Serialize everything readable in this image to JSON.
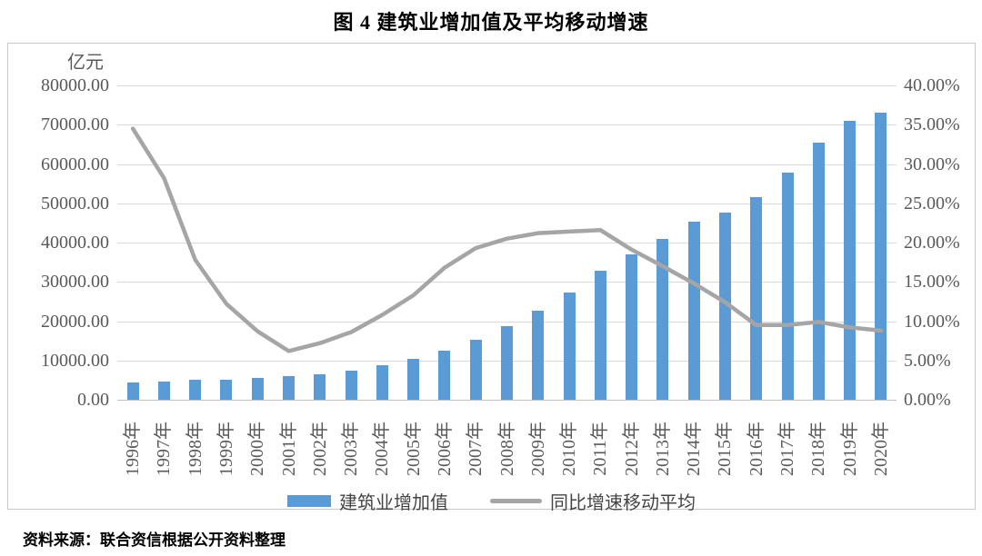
{
  "title": "图 4  建筑业增加值及平均移动增速",
  "source_note": "资料来源：联合资信根据公开资料整理",
  "left_axis_unit": "亿元",
  "left_axis_tick_labels": [
    "80000.00",
    "70000.00",
    "60000.00",
    "50000.00",
    "40000.00",
    "30000.00",
    "20000.00",
    "10000.00",
    "0.00"
  ],
  "right_axis_tick_labels": [
    "40.00%",
    "35.00%",
    "30.00%",
    "25.00%",
    "20.00%",
    "15.00%",
    "10.00%",
    "5.00%",
    "0.00%"
  ],
  "legend": {
    "bar_label": "建筑业增加值",
    "line_label": "同比增速移动平均"
  },
  "colors": {
    "bar": "#5b9bd5",
    "line": "#a5a5a5",
    "grid": "#d9d9d9",
    "axis_text": "#595959"
  },
  "chart_data": {
    "type": "bar",
    "subtype": "bar+line combo, dual axis",
    "title": "图 4  建筑业增加值及平均移动增速",
    "categories": [
      "1996年",
      "1997年",
      "1998年",
      "1999年",
      "2000年",
      "2001年",
      "2002年",
      "2003年",
      "2004年",
      "2005年",
      "2006年",
      "2007年",
      "2008年",
      "2009年",
      "2010年",
      "2011年",
      "2012年",
      "2013年",
      "2014年",
      "2015年",
      "2016年",
      "2017年",
      "2018年",
      "2019年",
      "2020年"
    ],
    "series": [
      {
        "name": "建筑业增加值",
        "type": "bar",
        "axis": "left",
        "unit": "亿元",
        "color": "#5b9bd5",
        "values": [
          4400,
          4600,
          5000,
          5200,
          5500,
          5900,
          6500,
          7500,
          8700,
          10400,
          12400,
          15300,
          18700,
          22700,
          27300,
          32900,
          36900,
          40900,
          45400,
          47600,
          51500,
          57700,
          65500,
          70900,
          73000
        ]
      },
      {
        "name": "同比增速移动平均",
        "type": "line",
        "axis": "right",
        "unit": "%",
        "color": "#a5a5a5",
        "values": [
          34.5,
          28.2,
          17.8,
          12.2,
          8.7,
          6.2,
          7.2,
          8.6,
          10.8,
          13.3,
          16.8,
          19.3,
          20.5,
          21.2,
          21.4,
          21.6,
          19.1,
          17.0,
          14.8,
          12.4,
          9.5,
          9.5,
          9.9,
          9.2,
          8.8
        ]
      }
    ],
    "left_axis": {
      "label": "亿元",
      "min": 0,
      "max": 80000,
      "step": 10000
    },
    "right_axis": {
      "label": "%",
      "min": 0,
      "max": 40,
      "step": 5
    },
    "grid": true,
    "legend_position": "bottom"
  }
}
